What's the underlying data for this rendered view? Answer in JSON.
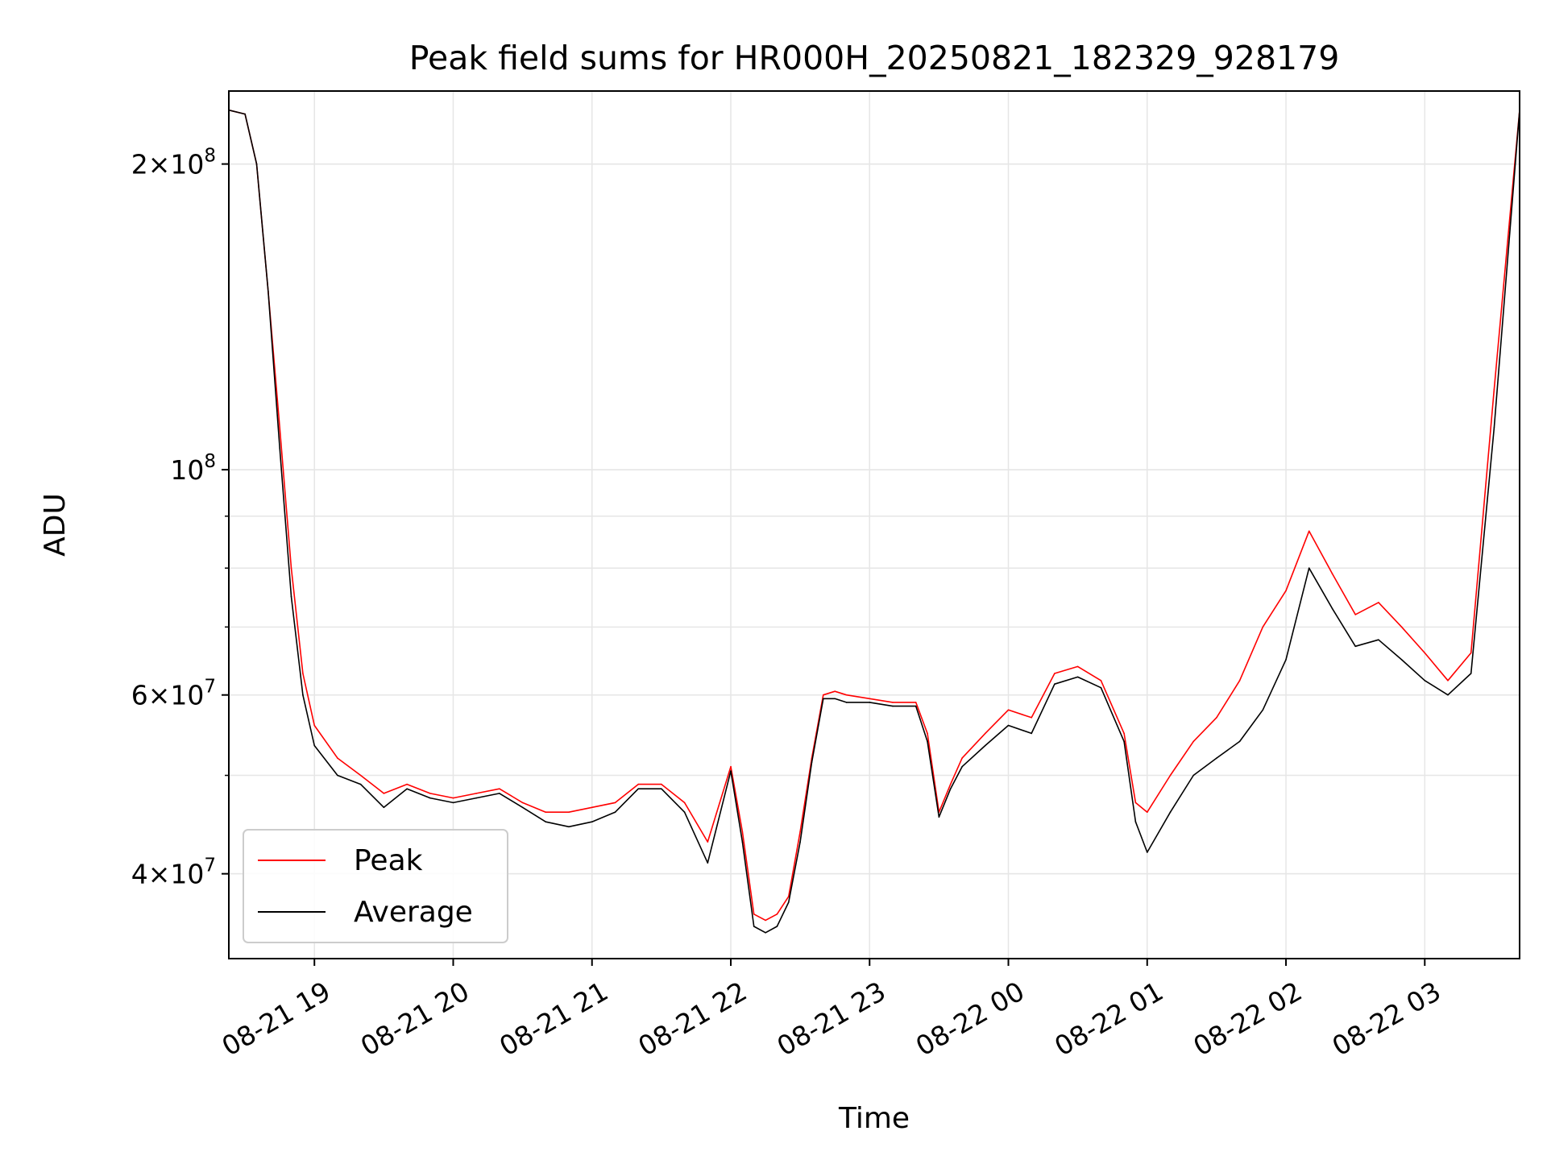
{
  "chart_data": {
    "type": "line",
    "title": "Peak field sums for HR000H_20250821_182329_928179",
    "xlabel": "Time",
    "ylabel": "ADU",
    "yscale": "log",
    "grid": true,
    "legend_position": "lower-left",
    "xlim": [
      "2025-08-21 18:23",
      "2025-08-22 03:41"
    ],
    "ylim": [
      33000000,
      236000000
    ],
    "x_ticks": [
      "08-21 19",
      "08-21 20",
      "08-21 21",
      "08-21 22",
      "08-21 23",
      "08-22 00",
      "08-22 01",
      "08-22 02",
      "08-22 03"
    ],
    "x_tick_times": [
      "2025-08-21 19:00",
      "2025-08-21 20:00",
      "2025-08-21 21:00",
      "2025-08-21 22:00",
      "2025-08-21 23:00",
      "2025-08-22 00:00",
      "2025-08-22 01:00",
      "2025-08-22 02:00",
      "2025-08-22 03:00"
    ],
    "y_ticks": [
      {
        "value": 40000000,
        "mantissa": "4",
        "exp": "7"
      },
      {
        "value": 60000000,
        "mantissa": "6",
        "exp": "7"
      },
      {
        "value": 100000000,
        "mantissa": "",
        "exp": "8"
      },
      {
        "value": 200000000,
        "mantissa": "2",
        "exp": "8"
      }
    ],
    "series": [
      {
        "name": "Peak",
        "color": "#ff0000",
        "x": [
          "2025-08-21 18:23",
          "2025-08-21 18:30",
          "2025-08-21 18:35",
          "2025-08-21 18:40",
          "2025-08-21 18:45",
          "2025-08-21 18:50",
          "2025-08-21 18:55",
          "2025-08-21 19:00",
          "2025-08-21 19:10",
          "2025-08-21 19:20",
          "2025-08-21 19:30",
          "2025-08-21 19:40",
          "2025-08-21 19:50",
          "2025-08-21 20:00",
          "2025-08-21 20:10",
          "2025-08-21 20:20",
          "2025-08-21 20:30",
          "2025-08-21 20:40",
          "2025-08-21 20:50",
          "2025-08-21 21:00",
          "2025-08-21 21:10",
          "2025-08-21 21:20",
          "2025-08-21 21:30",
          "2025-08-21 21:40",
          "2025-08-21 21:50",
          "2025-08-21 22:00",
          "2025-08-21 22:05",
          "2025-08-21 22:10",
          "2025-08-21 22:15",
          "2025-08-21 22:20",
          "2025-08-21 22:25",
          "2025-08-21 22:30",
          "2025-08-21 22:35",
          "2025-08-21 22:40",
          "2025-08-21 22:45",
          "2025-08-21 22:50",
          "2025-08-21 23:00",
          "2025-08-21 23:10",
          "2025-08-21 23:20",
          "2025-08-21 23:25",
          "2025-08-21 23:30",
          "2025-08-21 23:35",
          "2025-08-21 23:40",
          "2025-08-21 23:50",
          "2025-08-22 00:00",
          "2025-08-22 00:10",
          "2025-08-22 00:20",
          "2025-08-22 00:30",
          "2025-08-22 00:40",
          "2025-08-22 00:50",
          "2025-08-22 00:55",
          "2025-08-22 01:00",
          "2025-08-22 01:10",
          "2025-08-22 01:20",
          "2025-08-22 01:30",
          "2025-08-22 01:40",
          "2025-08-22 01:50",
          "2025-08-22 02:00",
          "2025-08-22 02:10",
          "2025-08-22 02:20",
          "2025-08-22 02:30",
          "2025-08-22 02:40",
          "2025-08-22 02:50",
          "2025-08-22 03:00",
          "2025-08-22 03:10",
          "2025-08-22 03:20",
          "2025-08-22 03:30",
          "2025-08-22 03:41"
        ],
        "y": [
          226000000,
          224000000,
          200000000,
          150000000,
          110000000,
          80000000,
          63000000,
          56000000,
          52000000,
          50000000,
          48000000,
          49000000,
          48000000,
          47500000,
          48000000,
          48500000,
          47000000,
          46000000,
          46000000,
          46500000,
          47000000,
          49000000,
          49000000,
          47000000,
          43000000,
          51000000,
          44000000,
          36500000,
          36000000,
          36500000,
          38000000,
          44000000,
          52000000,
          60000000,
          60500000,
          60000000,
          59500000,
          59000000,
          59000000,
          55000000,
          46000000,
          49000000,
          52000000,
          55000000,
          58000000,
          57000000,
          63000000,
          64000000,
          62000000,
          55000000,
          47000000,
          46000000,
          50000000,
          54000000,
          57000000,
          62000000,
          70000000,
          76000000,
          87000000,
          79000000,
          72000000,
          74000000,
          70000000,
          66000000,
          62000000,
          66000000,
          120000000,
          226000000
        ]
      },
      {
        "name": "Average",
        "color": "#000000",
        "x": [
          "2025-08-21 18:23",
          "2025-08-21 18:30",
          "2025-08-21 18:35",
          "2025-08-21 18:40",
          "2025-08-21 18:45",
          "2025-08-21 18:50",
          "2025-08-21 18:55",
          "2025-08-21 19:00",
          "2025-08-21 19:10",
          "2025-08-21 19:20",
          "2025-08-21 19:30",
          "2025-08-21 19:40",
          "2025-08-21 19:50",
          "2025-08-21 20:00",
          "2025-08-21 20:10",
          "2025-08-21 20:20",
          "2025-08-21 20:30",
          "2025-08-21 20:40",
          "2025-08-21 20:50",
          "2025-08-21 21:00",
          "2025-08-21 21:10",
          "2025-08-21 21:20",
          "2025-08-21 21:30",
          "2025-08-21 21:40",
          "2025-08-21 21:50",
          "2025-08-21 22:00",
          "2025-08-21 22:05",
          "2025-08-21 22:10",
          "2025-08-21 22:15",
          "2025-08-21 22:20",
          "2025-08-21 22:25",
          "2025-08-21 22:30",
          "2025-08-21 22:35",
          "2025-08-21 22:40",
          "2025-08-21 22:45",
          "2025-08-21 22:50",
          "2025-08-21 23:00",
          "2025-08-21 23:10",
          "2025-08-21 23:20",
          "2025-08-21 23:25",
          "2025-08-21 23:30",
          "2025-08-21 23:35",
          "2025-08-21 23:40",
          "2025-08-21 23:50",
          "2025-08-22 00:00",
          "2025-08-22 00:10",
          "2025-08-22 00:20",
          "2025-08-22 00:30",
          "2025-08-22 00:40",
          "2025-08-22 00:50",
          "2025-08-22 00:55",
          "2025-08-22 01:00",
          "2025-08-22 01:10",
          "2025-08-22 01:20",
          "2025-08-22 01:30",
          "2025-08-22 01:40",
          "2025-08-22 01:50",
          "2025-08-22 02:00",
          "2025-08-22 02:10",
          "2025-08-22 02:20",
          "2025-08-22 02:30",
          "2025-08-22 02:40",
          "2025-08-22 02:50",
          "2025-08-22 03:00",
          "2025-08-22 03:10",
          "2025-08-22 03:20",
          "2025-08-22 03:30",
          "2025-08-22 03:41"
        ],
        "y": [
          226000000,
          224000000,
          200000000,
          150000000,
          105000000,
          75000000,
          60000000,
          53500000,
          50000000,
          49000000,
          46500000,
          48500000,
          47500000,
          47000000,
          47500000,
          48000000,
          46500000,
          45000000,
          44500000,
          45000000,
          46000000,
          48500000,
          48500000,
          46000000,
          41000000,
          50500000,
          43000000,
          35500000,
          35000000,
          35500000,
          37500000,
          43000000,
          51500000,
          59500000,
          59500000,
          59000000,
          59000000,
          58500000,
          58500000,
          54000000,
          45500000,
          48500000,
          51000000,
          53500000,
          56000000,
          55000000,
          61500000,
          62500000,
          61000000,
          54000000,
          45000000,
          42000000,
          46000000,
          50000000,
          52000000,
          54000000,
          58000000,
          65000000,
          80000000,
          73000000,
          67000000,
          68000000,
          65000000,
          62000000,
          60000000,
          63000000,
          110000000,
          226000000
        ]
      }
    ]
  }
}
